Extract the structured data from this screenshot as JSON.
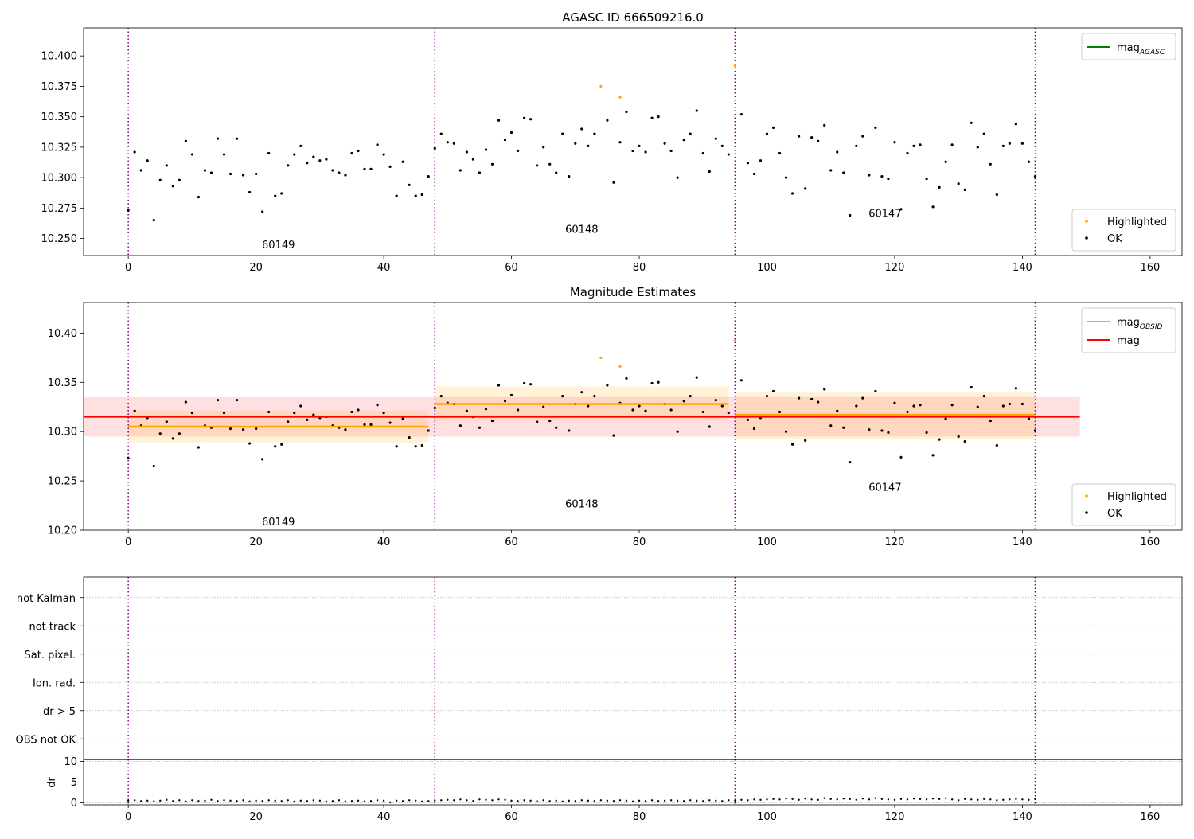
{
  "chart_data": [
    {
      "type": "scatter",
      "title": "AGASC ID 666509216.0",
      "xlim": [
        -7,
        165
      ],
      "ylim": [
        10.236,
        10.423
      ],
      "xticks": [
        0,
        20,
        40,
        60,
        80,
        100,
        120,
        140,
        160
      ],
      "yticks": [
        10.25,
        10.275,
        10.3,
        10.325,
        10.35,
        10.375,
        10.4
      ],
      "ytick_labels": [
        "10.250",
        "10.275",
        "10.300",
        "10.325",
        "10.350",
        "10.375",
        "10.400"
      ],
      "obs_boundaries": [
        0,
        48,
        95,
        142
      ],
      "obs_labels": [
        {
          "text": "60149",
          "x": 23.5,
          "y": 10.245
        },
        {
          "text": "60148",
          "x": 71,
          "y": 10.258
        },
        {
          "text": "60147",
          "x": 118.5,
          "y": 10.271
        }
      ],
      "legend_top": [
        {
          "label": "mag",
          "subscript": "AGASC",
          "color": "#008000",
          "kind": "line"
        }
      ],
      "legend_bottom": [
        {
          "label": "Highlighted",
          "color": "#ffa500",
          "kind": "dot"
        },
        {
          "label": "OK",
          "color": "#000000",
          "kind": "dot"
        }
      ],
      "series_ok": {
        "x": [
          0,
          1,
          2,
          3,
          4,
          5,
          6,
          7,
          8,
          9,
          10,
          11,
          12,
          13,
          14,
          15,
          16,
          17,
          18,
          19,
          20,
          21,
          22,
          23,
          24,
          25,
          26,
          27,
          28,
          29,
          30,
          31,
          32,
          33,
          34,
          35,
          36,
          37,
          38,
          39,
          40,
          41,
          42,
          43,
          44,
          45,
          46,
          47,
          48,
          49,
          50,
          51,
          52,
          53,
          54,
          55,
          56,
          57,
          58,
          59,
          60,
          61,
          62,
          63,
          64,
          65,
          66,
          67,
          68,
          69,
          70,
          71,
          72,
          73,
          75,
          76,
          77,
          78,
          79,
          80,
          81,
          82,
          83,
          84,
          85,
          86,
          87,
          88,
          89,
          90,
          91,
          92,
          93,
          94,
          96,
          97,
          98,
          99,
          100,
          101,
          102,
          103,
          104,
          105,
          106,
          107,
          108,
          109,
          110,
          111,
          112,
          113,
          114,
          115,
          116,
          117,
          118,
          119,
          120,
          121,
          122,
          123,
          124,
          125,
          126,
          127,
          128,
          129,
          130,
          131,
          132,
          133,
          134,
          135,
          136,
          137,
          138,
          139,
          140,
          141,
          142
        ],
        "y": [
          10.273,
          10.321,
          10.306,
          10.314,
          10.265,
          10.298,
          10.31,
          10.293,
          10.298,
          10.33,
          10.319,
          10.284,
          10.306,
          10.304,
          10.332,
          10.319,
          10.303,
          10.332,
          10.302,
          10.288,
          10.303,
          10.272,
          10.32,
          10.285,
          10.287,
          10.31,
          10.319,
          10.326,
          10.312,
          10.317,
          10.314,
          10.315,
          10.306,
          10.304,
          10.302,
          10.32,
          10.322,
          10.307,
          10.307,
          10.327,
          10.319,
          10.309,
          10.285,
          10.313,
          10.294,
          10.285,
          10.286,
          10.301,
          10.324,
          10.336,
          10.329,
          10.328,
          10.306,
          10.321,
          10.315,
          10.304,
          10.323,
          10.311,
          10.347,
          10.331,
          10.337,
          10.322,
          10.349,
          10.348,
          10.31,
          10.325,
          10.311,
          10.304,
          10.336,
          10.301,
          10.328,
          10.34,
          10.326,
          10.336,
          10.347,
          10.296,
          10.329,
          10.354,
          10.322,
          10.326,
          10.321,
          10.349,
          10.35,
          10.328,
          10.322,
          10.3,
          10.331,
          10.336,
          10.355,
          10.32,
          10.305,
          10.332,
          10.326,
          10.319,
          10.352,
          10.312,
          10.303,
          10.314,
          10.336,
          10.341,
          10.32,
          10.3,
          10.287,
          10.334,
          10.291,
          10.333,
          10.33,
          10.343,
          10.306,
          10.321,
          10.304,
          10.269,
          10.326,
          10.334,
          10.302,
          10.341,
          10.301,
          10.299,
          10.329,
          10.274,
          10.32,
          10.326,
          10.327,
          10.299,
          10.276,
          10.292,
          10.313,
          10.327,
          10.295,
          10.29,
          10.345,
          10.325,
          10.336,
          10.311,
          10.286,
          10.326,
          10.328,
          10.344,
          10.328,
          10.313,
          10.301
        ]
      },
      "series_highlighted": {
        "x": [
          74,
          77,
          95
        ],
        "y": [
          10.375,
          10.366,
          10.392
        ]
      }
    },
    {
      "type": "scatter",
      "title": "Magnitude Estimates",
      "xlim": [
        -7,
        165
      ],
      "ylim": [
        10.2,
        10.431
      ],
      "xticks": [
        0,
        20,
        40,
        60,
        80,
        100,
        120,
        140,
        160
      ],
      "yticks": [
        10.2,
        10.25,
        10.3,
        10.35,
        10.4
      ],
      "ytick_labels": [
        "10.20",
        "10.25",
        "10.30",
        "10.35",
        "10.40"
      ],
      "obs_boundaries": [
        0,
        48,
        95,
        142
      ],
      "obs_labels": [
        {
          "text": "60149",
          "x": 23.5,
          "y": 10.209
        },
        {
          "text": "60148",
          "x": 71,
          "y": 10.227
        },
        {
          "text": "60147",
          "x": 118.5,
          "y": 10.244
        }
      ],
      "mag_obsid": [
        {
          "x0": 0,
          "x1": 47,
          "value": 10.305,
          "band": [
            10.289,
            10.321
          ]
        },
        {
          "x0": 48,
          "x1": 94,
          "value": 10.328,
          "band": [
            10.311,
            10.346
          ]
        },
        {
          "x0": 95,
          "x1": 142,
          "value": 10.317,
          "band": [
            10.292,
            10.34
          ]
        }
      ],
      "mag": {
        "x0": -7,
        "x1": 149,
        "value": 10.315,
        "band": [
          10.295,
          10.335
        ]
      },
      "legend_top": [
        {
          "label": "mag",
          "subscript": "OBSID",
          "color": "#ffa500",
          "kind": "line"
        },
        {
          "label": "mag",
          "subscript": "",
          "color": "#ff0000",
          "kind": "line"
        }
      ],
      "legend_bottom": [
        {
          "label": "Highlighted",
          "color": "#ffa500",
          "kind": "dot"
        },
        {
          "label": "OK",
          "color": "#000000",
          "kind": "dot"
        }
      ]
    },
    {
      "type": "scatter",
      "title": "",
      "flag_rows": [
        "not Kalman",
        "not track",
        "Sat. pixel.",
        "Ion. rad.",
        "dr > 5",
        "OBS not OK"
      ],
      "obs_boundaries": [
        0,
        48,
        95,
        142
      ],
      "xlim": [
        -7,
        165
      ],
      "xticks": [
        0,
        20,
        40,
        60,
        80,
        100,
        120,
        140,
        160
      ],
      "dr": {
        "ylabel": "dr",
        "ylim": [
          -0.5,
          10.5
        ],
        "yticks": [
          0,
          5,
          10
        ],
        "ytick_labels": [
          "0",
          "5",
          "10"
        ],
        "x": [
          0,
          1,
          2,
          3,
          4,
          5,
          6,
          7,
          8,
          9,
          10,
          11,
          12,
          13,
          14,
          15,
          16,
          17,
          18,
          19,
          20,
          21,
          22,
          23,
          24,
          25,
          26,
          27,
          28,
          29,
          30,
          31,
          32,
          33,
          34,
          35,
          36,
          37,
          38,
          39,
          40,
          41,
          42,
          43,
          44,
          45,
          46,
          47,
          48,
          49,
          50,
          51,
          52,
          53,
          54,
          55,
          56,
          57,
          58,
          59,
          60,
          61,
          62,
          63,
          64,
          65,
          66,
          67,
          68,
          69,
          70,
          71,
          72,
          73,
          74,
          75,
          76,
          77,
          78,
          79,
          80,
          81,
          82,
          83,
          84,
          85,
          86,
          87,
          88,
          89,
          90,
          91,
          92,
          93,
          94,
          95,
          96,
          97,
          98,
          99,
          100,
          101,
          102,
          103,
          104,
          105,
          106,
          107,
          108,
          109,
          110,
          111,
          112,
          113,
          114,
          115,
          116,
          117,
          118,
          119,
          120,
          121,
          122,
          123,
          124,
          125,
          126,
          127,
          128,
          129,
          130,
          131,
          132,
          133,
          134,
          135,
          136,
          137,
          138,
          139,
          140,
          141,
          142
        ],
        "y": [
          0.5,
          0.6,
          0.4,
          0.5,
          0.3,
          0.5,
          0.7,
          0.4,
          0.6,
          0.3,
          0.6,
          0.4,
          0.5,
          0.7,
          0.4,
          0.6,
          0.5,
          0.4,
          0.6,
          0.3,
          0.5,
          0.4,
          0.6,
          0.5,
          0.4,
          0.6,
          0.3,
          0.5,
          0.4,
          0.6,
          0.5,
          0.3,
          0.4,
          0.6,
          0.3,
          0.4,
          0.5,
          0.3,
          0.4,
          0.6,
          0.5,
          0.1,
          0.5,
          0.4,
          0.6,
          0.5,
          0.3,
          0.4,
          0.5,
          0.6,
          0.7,
          0.6,
          0.8,
          0.6,
          0.4,
          0.8,
          0.7,
          0.6,
          0.8,
          0.7,
          0.5,
          0.4,
          0.6,
          0.5,
          0.4,
          0.6,
          0.4,
          0.5,
          0.3,
          0.5,
          0.4,
          0.6,
          0.5,
          0.4,
          0.6,
          0.5,
          0.4,
          0.6,
          0.5,
          0.3,
          0.5,
          0.4,
          0.6,
          0.4,
          0.5,
          0.6,
          0.5,
          0.4,
          0.6,
          0.5,
          0.4,
          0.6,
          0.5,
          0.4,
          0.6,
          0.5,
          0.7,
          0.6,
          0.8,
          0.7,
          0.8,
          0.9,
          0.8,
          1.0,
          0.9,
          0.7,
          1.0,
          0.8,
          0.7,
          1.1,
          0.9,
          0.8,
          1.0,
          0.9,
          0.7,
          1.0,
          0.8,
          1.1,
          0.9,
          0.8,
          0.7,
          0.9,
          0.8,
          1.0,
          0.9,
          0.8,
          1.0,
          0.9,
          1.1,
          0.8,
          0.6,
          0.9,
          0.8,
          0.7,
          0.9,
          0.8,
          0.6,
          0.7,
          0.8,
          0.9,
          0.8,
          0.7,
          0.9
        ]
      }
    }
  ]
}
